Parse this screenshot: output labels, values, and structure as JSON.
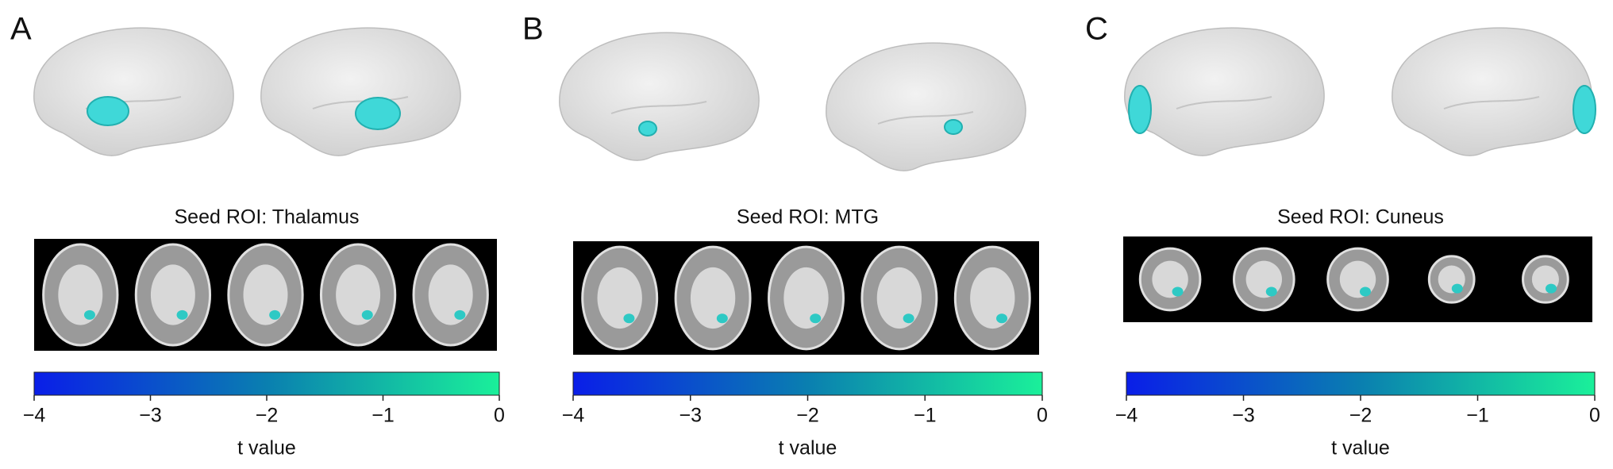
{
  "panels": [
    {
      "label": "A",
      "title": "Seed ROI: Thalamus",
      "colorbar": {
        "xlim": [
          -4,
          0
        ],
        "xticks": [
          {
            "value": -4,
            "label": "−4"
          },
          {
            "value": -3,
            "label": "−3"
          },
          {
            "value": -2,
            "label": "−2"
          },
          {
            "value": -1,
            "label": "−1"
          },
          0
        ],
        "axis_label": "t value"
      }
    },
    {
      "label": "B",
      "title": "Seed ROI: MTG",
      "colorbar": {
        "xlim": [
          -4,
          0
        ],
        "xticks": [
          {
            "value": -4,
            "label": "−4"
          },
          {
            "value": -3,
            "label": "−3"
          },
          {
            "value": -2,
            "label": "−2"
          },
          {
            "value": -1,
            "label": "−1"
          },
          0
        ],
        "axis_label": "t value"
      }
    },
    {
      "label": "C",
      "title": "Seed ROI: Cuneus",
      "colorbar": {
        "xlim": [
          -4,
          0
        ],
        "xticks": [
          {
            "value": -4,
            "label": "−4"
          },
          {
            "value": -3,
            "label": "−3"
          },
          {
            "value": -2,
            "label": "−2"
          },
          {
            "value": -1,
            "label": "−1"
          },
          0
        ],
        "axis_label": "t value"
      }
    }
  ]
}
